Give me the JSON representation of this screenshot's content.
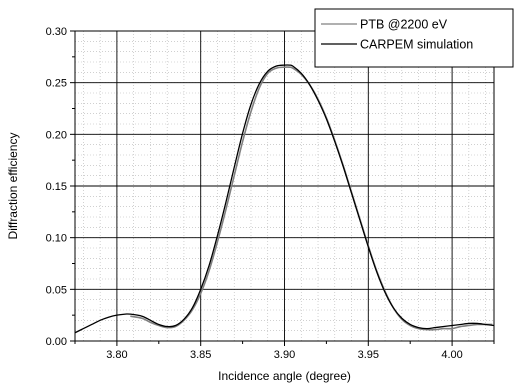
{
  "chart_data": {
    "type": "line",
    "title": "",
    "xlabel": "Incidence angle (degree)",
    "ylabel": "Diffraction efficiency",
    "xlim": [
      3.775,
      4.025
    ],
    "ylim": [
      0.0,
      0.3
    ],
    "x_ticks": [
      3.8,
      3.85,
      3.9,
      3.95,
      4.0
    ],
    "x_tick_labels": [
      "3.80",
      "3.85",
      "3.90",
      "3.95",
      "4.00"
    ],
    "y_ticks": [
      0.0,
      0.05,
      0.1,
      0.15,
      0.2,
      0.25,
      0.3
    ],
    "y_tick_labels": [
      "0.00",
      "0.05",
      "0.10",
      "0.15",
      "0.20",
      "0.25",
      "0.30"
    ],
    "grid": "major and minor",
    "legend_position": "top-right",
    "series": [
      {
        "name": "PTB @2200 eV",
        "color": "#808080",
        "x": [
          3.808,
          3.815,
          3.82,
          3.825,
          3.83,
          3.835,
          3.84,
          3.845,
          3.85,
          3.855,
          3.86,
          3.865,
          3.87,
          3.875,
          3.88,
          3.885,
          3.89,
          3.895,
          3.9,
          3.903,
          3.905,
          3.91,
          3.915,
          3.92,
          3.925,
          3.93,
          3.935,
          3.94,
          3.945,
          3.95,
          3.955,
          3.96,
          3.965,
          3.97,
          3.975,
          3.98,
          3.985,
          3.99,
          3.995,
          4.0,
          4.005,
          4.01,
          4.015,
          4.02,
          4.024
        ],
        "y": [
          0.024,
          0.022,
          0.018,
          0.015,
          0.013,
          0.014,
          0.02,
          0.03,
          0.046,
          0.068,
          0.096,
          0.127,
          0.16,
          0.193,
          0.222,
          0.245,
          0.259,
          0.264,
          0.265,
          0.265,
          0.264,
          0.258,
          0.248,
          0.234,
          0.216,
          0.194,
          0.17,
          0.144,
          0.118,
          0.092,
          0.068,
          0.048,
          0.032,
          0.021,
          0.015,
          0.012,
          0.011,
          0.011,
          0.012,
          0.012,
          0.014,
          0.015,
          0.016,
          0.016,
          0.016
        ]
      },
      {
        "name": "CARPEM simulation",
        "color": "#000000",
        "x": [
          3.775,
          3.78,
          3.785,
          3.79,
          3.795,
          3.8,
          3.805,
          3.808,
          3.815,
          3.82,
          3.825,
          3.83,
          3.835,
          3.84,
          3.845,
          3.85,
          3.855,
          3.86,
          3.865,
          3.87,
          3.875,
          3.88,
          3.885,
          3.89,
          3.895,
          3.9,
          3.903,
          3.905,
          3.91,
          3.915,
          3.92,
          3.925,
          3.93,
          3.935,
          3.94,
          3.945,
          3.95,
          3.955,
          3.96,
          3.965,
          3.97,
          3.975,
          3.98,
          3.985,
          3.99,
          3.995,
          4.0,
          4.005,
          4.01,
          4.015,
          4.02,
          4.025
        ],
        "y": [
          0.008,
          0.012,
          0.016,
          0.02,
          0.023,
          0.025,
          0.026,
          0.026,
          0.024,
          0.02,
          0.016,
          0.014,
          0.015,
          0.021,
          0.032,
          0.05,
          0.073,
          0.102,
          0.134,
          0.168,
          0.201,
          0.229,
          0.249,
          0.261,
          0.266,
          0.267,
          0.267,
          0.266,
          0.259,
          0.248,
          0.233,
          0.215,
          0.193,
          0.169,
          0.143,
          0.117,
          0.091,
          0.067,
          0.047,
          0.032,
          0.022,
          0.016,
          0.013,
          0.012,
          0.013,
          0.014,
          0.015,
          0.016,
          0.017,
          0.017,
          0.016,
          0.015
        ]
      }
    ]
  }
}
